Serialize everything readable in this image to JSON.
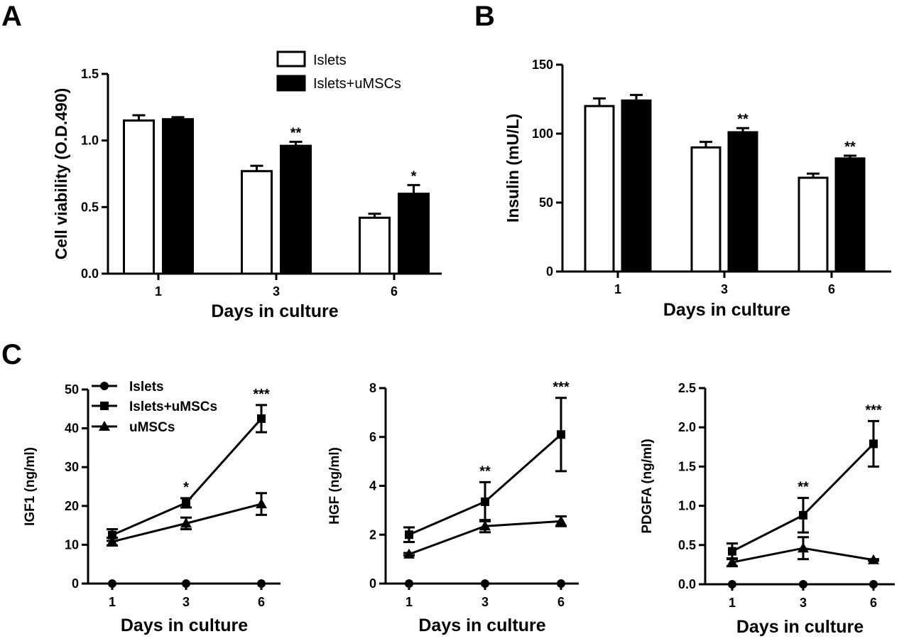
{
  "figure": {
    "panel_letters": [
      "A",
      "B",
      "C"
    ]
  },
  "chart_data": [
    {
      "panel": "A",
      "type": "bar",
      "xlabel": "Days in culture",
      "ylabel": "Cell viability (O.D.490)",
      "categories": [
        "1",
        "3",
        "6"
      ],
      "ylim": [
        0,
        1.5
      ],
      "yticks": [
        "0.0",
        "0.5",
        "1.0",
        "1.5"
      ],
      "ytick_values": [
        0,
        0.5,
        1.0,
        1.5
      ],
      "legend": "top-right",
      "series": [
        {
          "name": "Islets",
          "fill": "#ffffff",
          "values": [
            1.15,
            0.77,
            0.42
          ],
          "errors": [
            0.04,
            0.04,
            0.03
          ]
        },
        {
          "name": "Islets+uMSCs",
          "fill": "#000000",
          "values": [
            1.16,
            0.96,
            0.6
          ],
          "errors": [
            0.015,
            0.03,
            0.065
          ]
        }
      ],
      "significance": [
        {
          "category": "3",
          "series": "Islets+uMSCs",
          "label": "**"
        },
        {
          "category": "6",
          "series": "Islets+uMSCs",
          "label": "*"
        }
      ]
    },
    {
      "panel": "B",
      "type": "bar",
      "xlabel": "Days in culture",
      "ylabel": "Insulin (mU/L)",
      "categories": [
        "1",
        "3",
        "6"
      ],
      "ylim": [
        0,
        150
      ],
      "yticks": [
        "0",
        "50",
        "100",
        "150"
      ],
      "ytick_values": [
        0,
        50,
        100,
        150
      ],
      "series": [
        {
          "name": "Islets",
          "fill": "#ffffff",
          "values": [
            120,
            90,
            68
          ],
          "errors": [
            5.5,
            4,
            3
          ]
        },
        {
          "name": "Islets+uMSCs",
          "fill": "#000000",
          "values": [
            124,
            101,
            82
          ],
          "errors": [
            4,
            3,
            2
          ]
        }
      ],
      "significance": [
        {
          "category": "3",
          "series": "Islets+uMSCs",
          "label": "**"
        },
        {
          "category": "6",
          "series": "Islets+uMSCs",
          "label": "**"
        }
      ]
    },
    {
      "panel": "C1",
      "type": "line",
      "xlabel": "Days in culture",
      "ylabel": "IGF1 (ng/ml)",
      "x": [
        "1",
        "3",
        "6"
      ],
      "ylim": [
        0,
        50
      ],
      "yticks": [
        "0",
        "10",
        "20",
        "30",
        "40",
        "50"
      ],
      "ytick_values": [
        0,
        10,
        20,
        30,
        40,
        50
      ],
      "legend": "top-left",
      "series": [
        {
          "name": "Islets",
          "marker": "circle",
          "values": [
            0,
            0,
            0
          ],
          "errors": [
            0,
            0,
            0
          ]
        },
        {
          "name": "Islets+uMSCs",
          "marker": "square",
          "values": [
            12.5,
            20.8,
            42.5
          ],
          "errors": [
            1.5,
            1.2,
            3.5
          ]
        },
        {
          "name": "uMSCs",
          "marker": "triangle",
          "values": [
            10.8,
            15.5,
            20.5
          ],
          "errors": [
            1.0,
            1.5,
            2.8
          ]
        }
      ],
      "significance": [
        {
          "x": "3",
          "label": "*"
        },
        {
          "x": "6",
          "label": "***"
        }
      ]
    },
    {
      "panel": "C2",
      "type": "line",
      "xlabel": "Days in culture",
      "ylabel": "HGF (ng/ml)",
      "x": [
        "1",
        "3",
        "6"
      ],
      "ylim": [
        0,
        8
      ],
      "yticks": [
        "0",
        "2",
        "4",
        "6",
        "8"
      ],
      "ytick_values": [
        0,
        2,
        4,
        6,
        8
      ],
      "series": [
        {
          "name": "Islets",
          "marker": "circle",
          "values": [
            0,
            0,
            0
          ],
          "errors": [
            0,
            0,
            0
          ]
        },
        {
          "name": "Islets+uMSCs",
          "marker": "square",
          "values": [
            2.0,
            3.35,
            6.1
          ],
          "errors": [
            0.3,
            0.8,
            1.5
          ]
        },
        {
          "name": "uMSCs",
          "marker": "triangle",
          "values": [
            1.2,
            2.35,
            2.55
          ],
          "errors": [
            0.05,
            0.25,
            0.2
          ]
        }
      ],
      "significance": [
        {
          "x": "3",
          "label": "**"
        },
        {
          "x": "6",
          "label": "***"
        }
      ]
    },
    {
      "panel": "C3",
      "type": "line",
      "xlabel": "Days in culture",
      "ylabel": "PDGFA (ng/ml)",
      "x": [
        "1",
        "3",
        "6"
      ],
      "ylim": [
        0,
        2.5
      ],
      "yticks": [
        "0.0",
        "0.5",
        "1.0",
        "1.5",
        "2.0",
        "2.5"
      ],
      "ytick_values": [
        0,
        0.5,
        1.0,
        1.5,
        2.0,
        2.5
      ],
      "series": [
        {
          "name": "Islets",
          "marker": "circle",
          "values": [
            0,
            0,
            0
          ],
          "errors": [
            0,
            0,
            0
          ]
        },
        {
          "name": "Islets+uMSCs",
          "marker": "square",
          "values": [
            0.42,
            0.88,
            1.79
          ],
          "errors": [
            0.1,
            0.22,
            0.29
          ]
        },
        {
          "name": "uMSCs",
          "marker": "triangle",
          "values": [
            0.28,
            0.46,
            0.31
          ],
          "errors": [
            0.05,
            0.14,
            0.01
          ]
        }
      ],
      "significance": [
        {
          "x": "3",
          "label": "**"
        },
        {
          "x": "6",
          "label": "***"
        }
      ]
    }
  ]
}
